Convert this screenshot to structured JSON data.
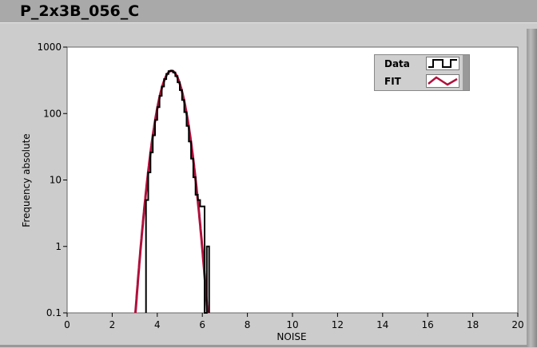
{
  "window": {
    "title": "P_2x3B_056_C"
  },
  "legend": {
    "items": [
      {
        "label": "Data",
        "color": "#000000",
        "style": "step"
      },
      {
        "label": "FIT",
        "color": "#b0103c",
        "style": "line"
      }
    ]
  },
  "chart_data": {
    "type": "line",
    "xlabel": "NOISE",
    "ylabel": "Frequency absolute",
    "xlim": [
      0,
      20
    ],
    "ylim": [
      0.1,
      1000
    ],
    "yscale": "log",
    "x_ticks": [
      "0",
      "2",
      "4",
      "6",
      "8",
      "10",
      "12",
      "14",
      "16",
      "18",
      "20"
    ],
    "y_ticks": [
      "0.1",
      "1",
      "10",
      "100",
      "1000"
    ],
    "grid": false,
    "legend_position": "top-right",
    "series": [
      {
        "name": "Data",
        "type": "step",
        "color": "#000000",
        "bin_start": 3.5,
        "bin_width": 0.1,
        "values": [
          5,
          13,
          26,
          47,
          80,
          125,
          185,
          255,
          330,
          395,
          435,
          440,
          415,
          365,
          295,
          225,
          160,
          105,
          65,
          38,
          21,
          11,
          6,
          5,
          4,
          4,
          0,
          1
        ]
      },
      {
        "name": "FIT",
        "type": "gaussian",
        "color": "#b0103c",
        "amplitude": 440,
        "mean": 4.63,
        "sigma": 0.39
      }
    ]
  }
}
